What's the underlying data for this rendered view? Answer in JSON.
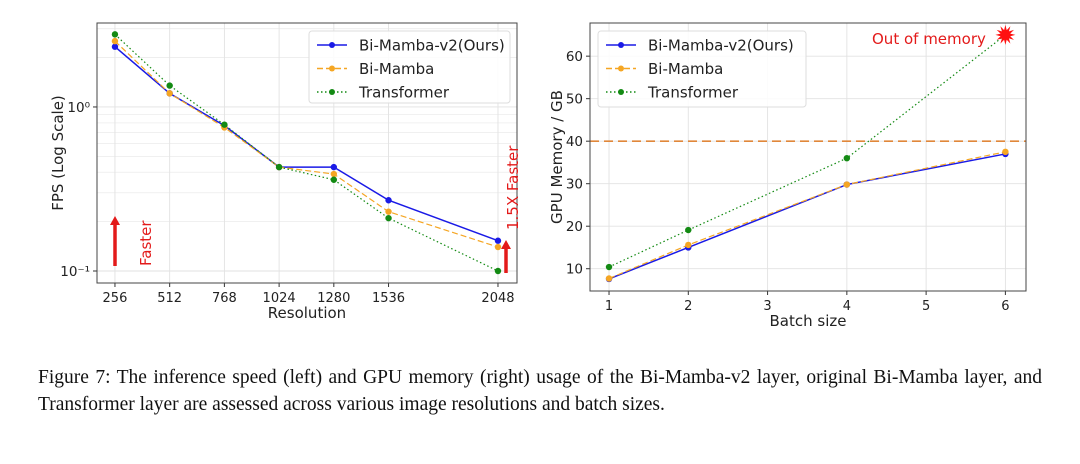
{
  "chart_data": [
    {
      "type": "line",
      "title": "",
      "xlabel": "Resolution",
      "ylabel": "FPS (Log Scale)",
      "yscale": "log",
      "x": [
        256,
        512,
        768,
        1024,
        1280,
        1536,
        2048
      ],
      "xticks": [
        256,
        512,
        768,
        1024,
        1280,
        1536,
        2048
      ],
      "xlim": [
        172,
        2137
      ],
      "ylim": [
        0.0845,
        3.25
      ],
      "yticks": [
        {
          "value": 1.0,
          "label": "10⁰"
        },
        {
          "value": 0.1,
          "label": "10⁻¹"
        }
      ],
      "grid": true,
      "legend": "top-right",
      "series": [
        {
          "name": "Bi-Mamba-v2(Ours)",
          "color": "#1a1ae6",
          "style": "solid",
          "values": [
            2.33,
            1.21,
            0.77,
            0.43,
            0.43,
            0.27,
            0.153
          ]
        },
        {
          "name": "Bi-Mamba",
          "color": "#f5a623",
          "style": "dashed",
          "values": [
            2.52,
            1.21,
            0.75,
            0.43,
            0.39,
            0.23,
            0.14
          ]
        },
        {
          "name": "Transformer",
          "color": "#138a13",
          "style": "dotted",
          "values": [
            2.77,
            1.35,
            0.78,
            0.43,
            0.36,
            0.21,
            0.1
          ]
        }
      ],
      "annotations": [
        {
          "text": "Faster",
          "color": "#e31a1a"
        },
        {
          "text": "1.5X Faster",
          "color": "#e31a1a"
        }
      ]
    },
    {
      "type": "line",
      "title": "",
      "xlabel": "Batch size",
      "ylabel": "GPU Memory / GB",
      "x": [
        1,
        2,
        4,
        6
      ],
      "xticks": [
        1,
        2,
        3,
        4,
        5,
        6
      ],
      "xlim": [
        0.76,
        6.26
      ],
      "ylim": [
        4.76,
        67.8
      ],
      "yticks": [
        10,
        20,
        30,
        40,
        50,
        60
      ],
      "grid": true,
      "legend": "top-left",
      "hline": {
        "value": 40,
        "color": "#e0873a",
        "style": "dashed"
      },
      "series": [
        {
          "name": "Bi-Mamba-v2(Ours)",
          "color": "#1a1ae6",
          "style": "solid",
          "values": [
            7.6,
            15.0,
            29.8,
            37.0
          ]
        },
        {
          "name": "Bi-Mamba",
          "color": "#f5a623",
          "style": "dashed",
          "values": [
            7.7,
            15.6,
            29.8,
            37.5
          ]
        },
        {
          "name": "Transformer",
          "color": "#138a13",
          "style": "dotted",
          "values": [
            10.4,
            19.1,
            36.0,
            65.0
          ]
        }
      ],
      "annotations": [
        {
          "text": "Out of memory",
          "color": "#e31a1a"
        }
      ]
    }
  ],
  "caption": "Figure 7: The inference speed (left) and GPU memory (right) usage of the Bi-Mamba-v2 layer, original Bi-Mamba layer, and Transformer layer are assessed across various image resolutions and batch sizes."
}
